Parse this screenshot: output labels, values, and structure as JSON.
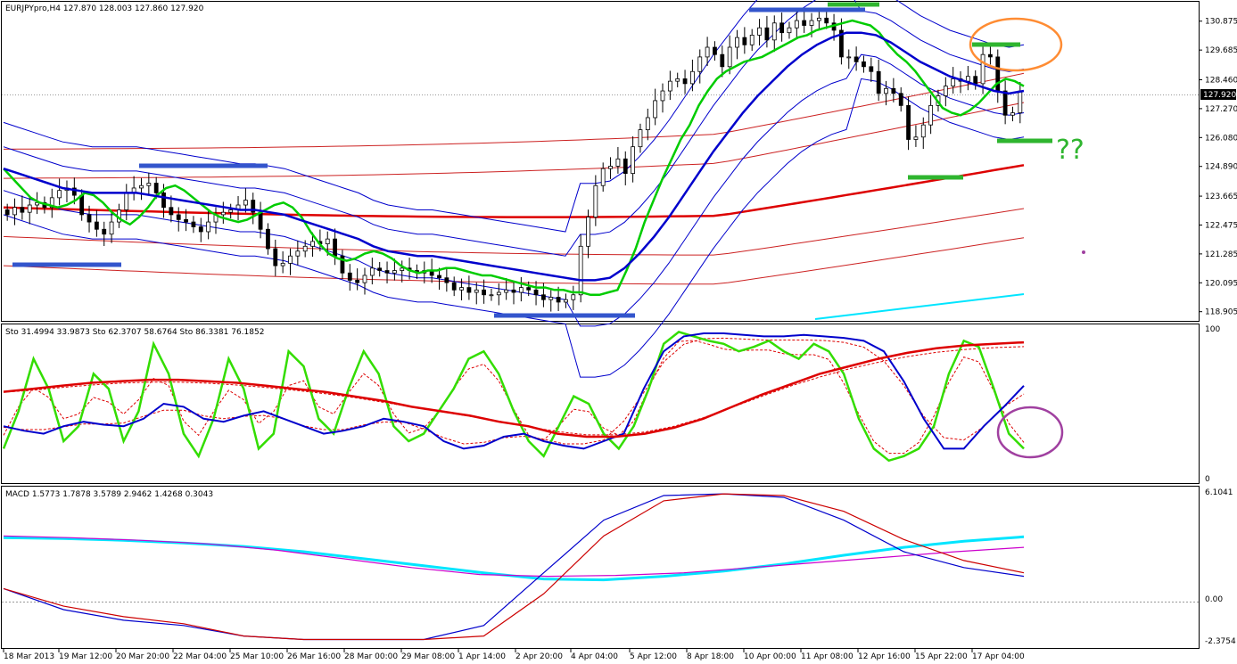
{
  "chart_data": [
    {
      "type": "candlestick",
      "header": "EURJPYpro,H4  127.870 128.003 127.860 127.920",
      "current_price": "127.920",
      "ylim": [
        118.6,
        131.6
      ],
      "yticks": [
        "130.875",
        "129.685",
        "128.460",
        "127.270",
        "126.080",
        "124.890",
        "123.665",
        "122.475",
        "121.285",
        "120.095",
        "118.905"
      ],
      "ytick_values": [
        130.875,
        129.685,
        128.46,
        127.27,
        126.08,
        124.89,
        123.665,
        122.475,
        121.285,
        120.095,
        118.905
      ],
      "annotation": "??",
      "closes": [
        122.9,
        123.2,
        123.0,
        123.3,
        123.4,
        123.2,
        123.6,
        123.9,
        124.0,
        123.7,
        122.9,
        122.6,
        122.3,
        122.1,
        122.6,
        123.1,
        123.8,
        124.0,
        124.1,
        124.2,
        123.8,
        123.2,
        122.9,
        122.7,
        122.6,
        122.4,
        122.2,
        122.6,
        122.9,
        123.0,
        123.1,
        123.3,
        123.5,
        123.0,
        122.3,
        121.5,
        120.8,
        120.9,
        121.2,
        121.4,
        121.6,
        121.8,
        121.7,
        121.9,
        121.2,
        120.5,
        120.2,
        120.1,
        120.4,
        120.7,
        120.6,
        120.5,
        120.6,
        120.7,
        120.6,
        120.5,
        120.6,
        120.4,
        120.3,
        120.1,
        119.8,
        119.9,
        119.7,
        119.8,
        119.6,
        119.6,
        119.7,
        119.8,
        119.7,
        119.9,
        119.8,
        119.6,
        119.4,
        119.5,
        119.3,
        119.4,
        119.6,
        121.6,
        122.8,
        124.1,
        124.8,
        124.9,
        125.2,
        124.6,
        125.7,
        126.4,
        126.9,
        127.6,
        128.0,
        128.4,
        128.5,
        128.3,
        128.8,
        129.4,
        129.8,
        129.5,
        129.0,
        129.8,
        130.2,
        129.9,
        130.3,
        130.6,
        130.1,
        130.8,
        130.4,
        130.6,
        130.9,
        130.7,
        130.9,
        131.0,
        130.8,
        130.5,
        129.4,
        129.4,
        129.2,
        129.0,
        128.8,
        127.9,
        128.1,
        127.9,
        127.4,
        126.0,
        126.1,
        126.6,
        127.4,
        127.8,
        128.2,
        128.5,
        128.4,
        128.6,
        128.3,
        129.5,
        129.4,
        128.0,
        127.0,
        127.1,
        128.0
      ],
      "series": [
        {
          "name": "",
          "color": "#00cc00",
          "values": [
            124.8,
            124.4,
            124.0,
            123.6,
            123.4,
            123.3,
            123.2,
            123.3,
            123.5,
            123.8,
            123.7,
            123.4,
            123.0,
            122.7,
            122.5,
            122.8,
            123.2,
            123.7,
            124.0,
            124.1,
            123.9,
            123.6,
            123.3,
            123.0,
            122.8,
            122.7,
            122.6,
            122.7,
            122.9,
            123.1,
            123.3,
            123.4,
            123.2,
            122.8,
            122.2,
            121.7,
            121.3,
            121.1,
            121.0,
            121.1,
            121.3,
            121.4,
            121.3,
            121.1,
            120.8,
            120.6,
            120.5,
            120.6,
            120.6,
            120.7,
            120.7,
            120.6,
            120.5,
            120.4,
            120.4,
            120.3,
            120.2,
            120.1,
            120.0,
            119.9,
            119.9,
            119.8,
            119.8,
            119.7,
            119.7,
            119.6,
            119.6,
            119.7,
            119.8,
            120.6,
            121.5,
            122.6,
            123.5,
            124.4,
            125.2,
            126.0,
            126.6,
            127.4,
            128.0,
            128.5,
            128.8,
            129.0,
            129.2,
            129.3,
            129.4,
            129.6,
            129.8,
            130.0,
            130.2,
            130.3,
            130.5,
            130.6,
            130.7,
            130.8,
            130.9,
            130.8,
            130.7,
            130.4,
            129.9,
            129.5,
            129.2,
            128.8,
            128.3,
            127.8,
            127.3,
            127.1,
            127.0,
            127.2,
            127.5,
            127.9,
            128.3,
            128.5,
            128.4,
            128.2
          ]
        },
        {
          "name": "",
          "color": "#0000cc",
          "values": [
            124.8,
            124.6,
            124.4,
            124.2,
            124.0,
            123.9,
            123.8,
            123.8,
            123.8,
            123.8,
            123.7,
            123.6,
            123.5,
            123.4,
            123.3,
            123.2,
            123.1,
            123.1,
            123.0,
            122.9,
            122.7,
            122.5,
            122.3,
            122.1,
            121.9,
            121.6,
            121.4,
            121.3,
            121.2,
            121.2,
            121.1,
            121.0,
            120.9,
            120.8,
            120.7,
            120.6,
            120.5,
            120.4,
            120.3,
            120.2,
            120.2,
            120.3,
            120.7,
            121.3,
            122.0,
            122.8,
            123.7,
            124.6,
            125.5,
            126.3,
            127.1,
            127.8,
            128.4,
            129.0,
            129.5,
            129.9,
            130.2,
            130.4,
            130.4,
            130.3,
            130.0,
            129.6,
            129.2,
            128.9,
            128.6,
            128.4,
            128.2,
            128.0,
            127.9,
            128.0
          ]
        }
      ]
    },
    {
      "type": "line",
      "header": "Sto 31.4994 33.9873  Sto 62.3707 58.6764  Sto 86.3381 76.1852",
      "ylim": [
        0,
        100
      ],
      "yticks": [
        "100",
        "0"
      ],
      "series": [
        {
          "name": "",
          "color": "#33dd00",
          "values": [
            20,
            45,
            80,
            60,
            25,
            35,
            70,
            60,
            25,
            45,
            90,
            70,
            30,
            15,
            40,
            80,
            60,
            20,
            30,
            85,
            75,
            40,
            30,
            60,
            85,
            70,
            35,
            25,
            30,
            45,
            60,
            80,
            85,
            70,
            45,
            25,
            15,
            35,
            55,
            50,
            30,
            20,
            35,
            60,
            90,
            98,
            95,
            92,
            90,
            85,
            88,
            92,
            85,
            80,
            90,
            85,
            70,
            40,
            20,
            12,
            15,
            20,
            35,
            70,
            92,
            88,
            60,
            30,
            20
          ]
        },
        {
          "name": "",
          "color": "#0000cc",
          "values": [
            35,
            32,
            30,
            35,
            38,
            36,
            35,
            40,
            50,
            48,
            40,
            38,
            42,
            45,
            40,
            35,
            30,
            32,
            35,
            40,
            38,
            35,
            25,
            20,
            22,
            28,
            30,
            25,
            22,
            20,
            25,
            30,
            60,
            85,
            95,
            97,
            97,
            96,
            95,
            95,
            96,
            95,
            94,
            92,
            85,
            65,
            40,
            20,
            20,
            35,
            48,
            62
          ]
        },
        {
          "name": "",
          "color": "#dd0000",
          "values": [
            58,
            60,
            62,
            64,
            65,
            66,
            66,
            65,
            64,
            62,
            60,
            58,
            55,
            52,
            48,
            45,
            42,
            38,
            35,
            30,
            28,
            28,
            30,
            34,
            40,
            48,
            56,
            63,
            70,
            75,
            80,
            84,
            87,
            89,
            90,
            91
          ]
        }
      ]
    },
    {
      "type": "line",
      "header": "MACD 1.5773 1.7878 3.5789 2.9462 1.4268 0.3043",
      "ylim": [
        -2.3754,
        6.1041
      ],
      "yticks": [
        "6.1041",
        "0.00",
        "-2.3754"
      ],
      "series": [
        {
          "name": "",
          "color": "#00e5ff",
          "values": [
            3.5,
            3.45,
            3.35,
            3.2,
            3.0,
            2.7,
            2.3,
            1.9,
            1.5,
            1.15,
            1.1,
            1.3,
            1.6,
            2.0,
            2.5,
            2.95,
            3.3,
            3.55
          ]
        },
        {
          "name": "",
          "color": "#cc00cc",
          "values": [
            3.6,
            3.5,
            3.35,
            3.15,
            2.8,
            2.3,
            1.8,
            1.4,
            1.3,
            1.35,
            1.5,
            1.8,
            2.1,
            2.4,
            2.7,
            2.95
          ]
        },
        {
          "name": "",
          "color": "#0000cc",
          "values": [
            0.6,
            -0.6,
            -1.2,
            -1.5,
            -2.1,
            -2.3,
            -2.3,
            -2.3,
            -1.5,
            1.5,
            4.5,
            5.9,
            6.0,
            5.8,
            4.5,
            2.7,
            1.8,
            1.3
          ]
        },
        {
          "name": "",
          "color": "#cc0000",
          "values": [
            0.6,
            -0.4,
            -1.0,
            -1.4,
            -2.1,
            -2.3,
            -2.3,
            -2.3,
            -2.1,
            0.3,
            3.6,
            5.6,
            6.0,
            5.9,
            5.0,
            3.4,
            2.2,
            1.5
          ]
        }
      ]
    }
  ]
}
